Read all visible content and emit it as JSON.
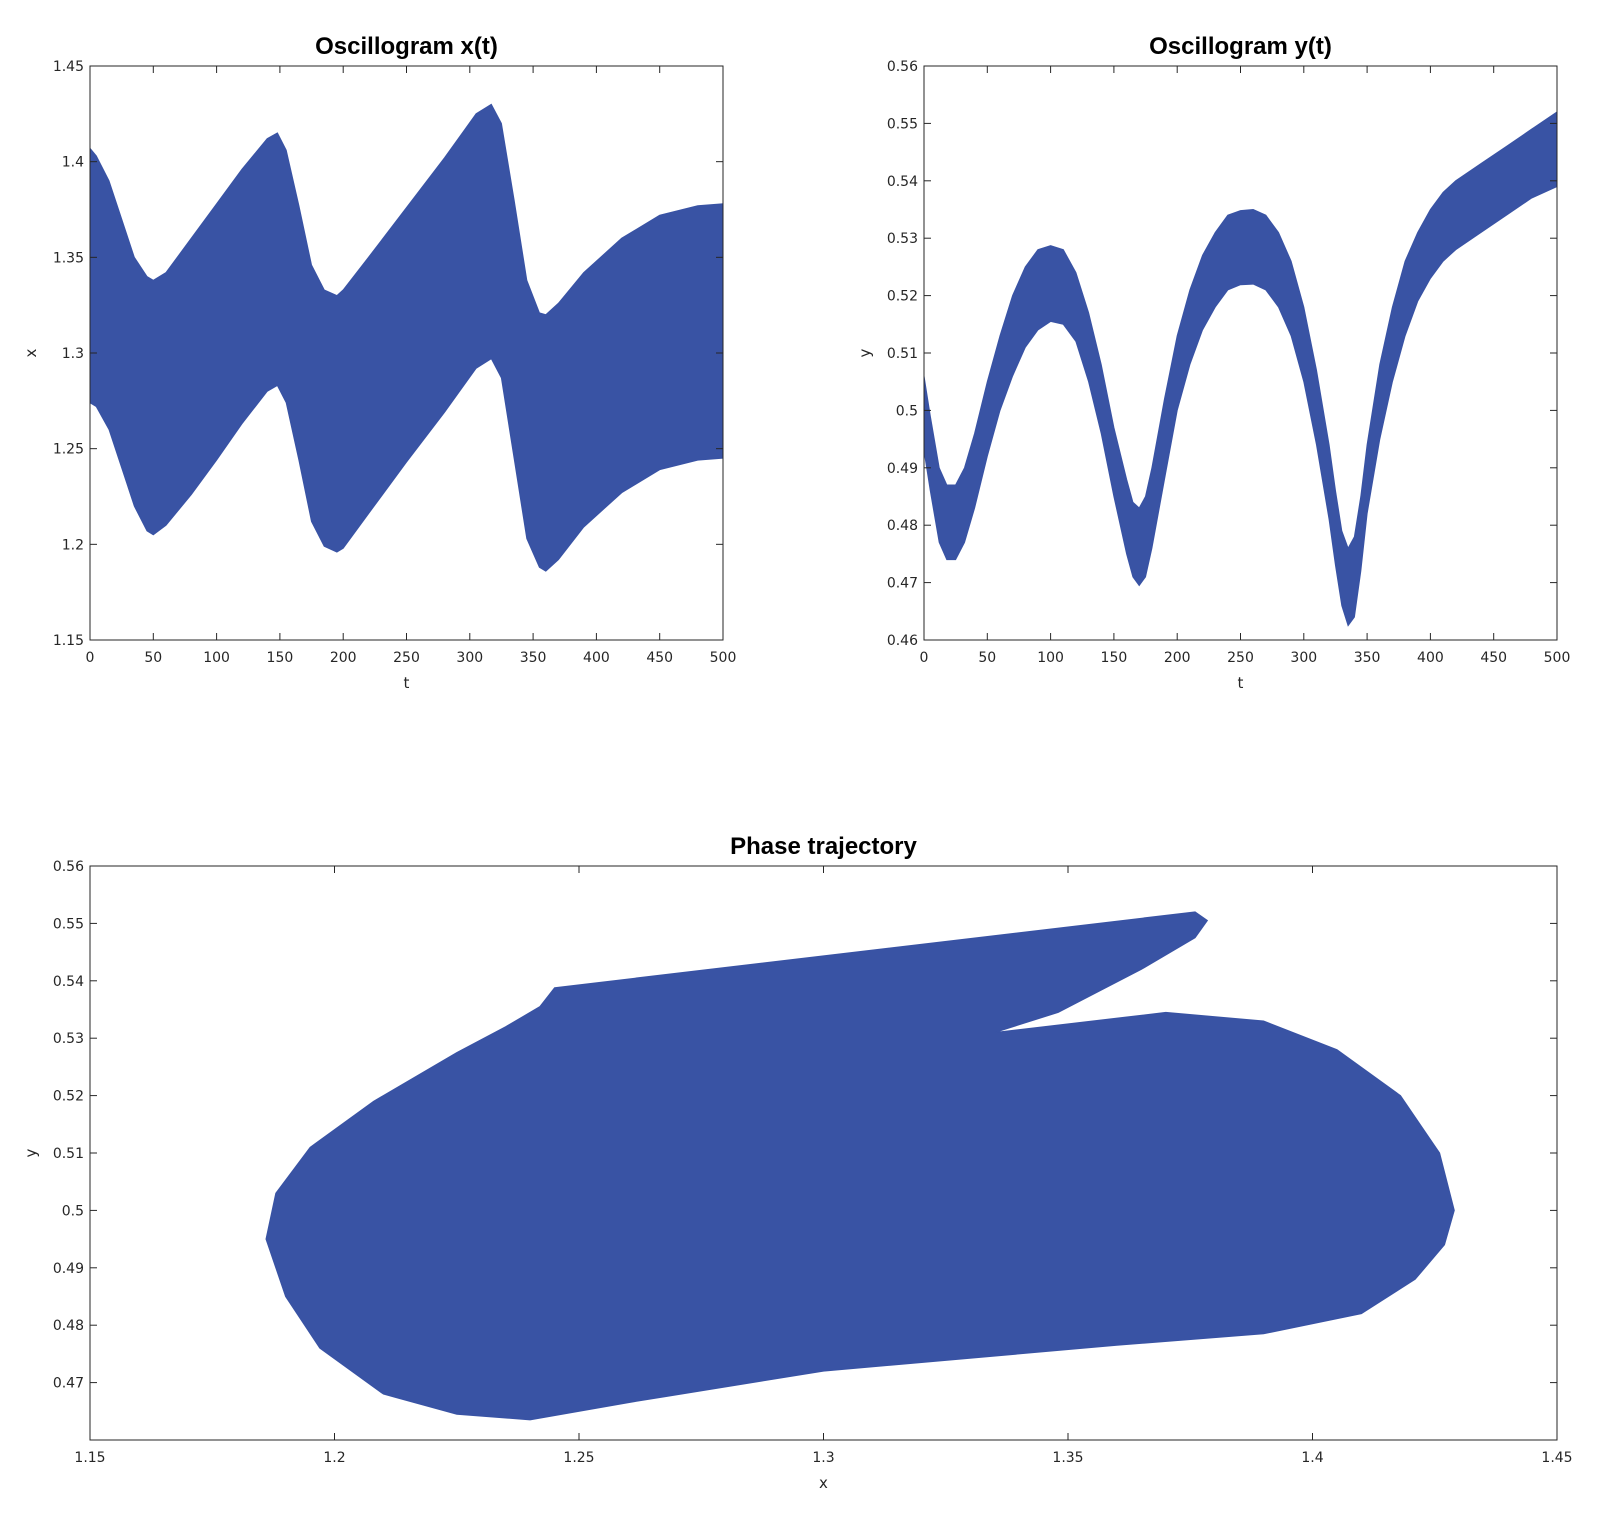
{
  "colors": {
    "band": "#3953a4",
    "axis": "#262626",
    "background": "#ffffff"
  },
  "chart_data": [
    {
      "id": "xt",
      "type": "area",
      "title": "Oscillogram x(t)",
      "xlabel": "t",
      "ylabel": "x",
      "xlim": [
        0,
        500
      ],
      "ylim": [
        1.15,
        1.45
      ],
      "xticks": [
        0,
        50,
        100,
        150,
        200,
        250,
        300,
        350,
        400,
        450,
        500
      ],
      "yticks": [
        1.15,
        1.2,
        1.25,
        1.3,
        1.35,
        1.4,
        1.45
      ],
      "xtick_labels": [
        "0",
        "50",
        "100",
        "150",
        "200",
        "250",
        "300",
        "350",
        "400",
        "450",
        "500"
      ],
      "ytick_labels": [
        "1.15",
        "1.2",
        "1.25",
        "1.3",
        "1.35",
        "1.4",
        "1.45"
      ],
      "grid": false,
      "x": [
        0,
        5,
        15,
        25,
        35,
        45,
        50,
        60,
        80,
        100,
        120,
        140,
        148,
        155,
        165,
        175,
        185,
        195,
        200,
        220,
        250,
        280,
        305,
        317,
        325,
        335,
        345,
        355,
        360,
        370,
        390,
        420,
        450,
        480,
        500
      ],
      "upper": [
        1.407,
        1.403,
        1.39,
        1.37,
        1.35,
        1.34,
        1.338,
        1.342,
        1.36,
        1.378,
        1.396,
        1.412,
        1.415,
        1.406,
        1.377,
        1.346,
        1.333,
        1.33,
        1.333,
        1.35,
        1.376,
        1.402,
        1.425,
        1.43,
        1.42,
        1.38,
        1.338,
        1.321,
        1.32,
        1.326,
        1.342,
        1.36,
        1.372,
        1.377,
        1.378
      ],
      "lower": [
        1.274,
        1.272,
        1.26,
        1.24,
        1.22,
        1.207,
        1.205,
        1.21,
        1.226,
        1.244,
        1.263,
        1.28,
        1.283,
        1.274,
        1.244,
        1.212,
        1.199,
        1.196,
        1.198,
        1.216,
        1.243,
        1.269,
        1.292,
        1.297,
        1.287,
        1.245,
        1.203,
        1.188,
        1.186,
        1.192,
        1.209,
        1.227,
        1.239,
        1.244,
        1.245
      ]
    },
    {
      "id": "yt",
      "type": "area",
      "title": "Oscillogram y(t)",
      "xlabel": "t",
      "ylabel": "y",
      "xlim": [
        0,
        500
      ],
      "ylim": [
        0.46,
        0.56
      ],
      "xticks": [
        0,
        50,
        100,
        150,
        200,
        250,
        300,
        350,
        400,
        450,
        500
      ],
      "yticks": [
        0.46,
        0.47,
        0.48,
        0.49,
        0.5,
        0.51,
        0.52,
        0.53,
        0.54,
        0.55,
        0.56
      ],
      "xtick_labels": [
        "0",
        "50",
        "100",
        "150",
        "200",
        "250",
        "300",
        "350",
        "400",
        "450",
        "500"
      ],
      "ytick_labels": [
        "0.46",
        "0.47",
        "0.48",
        "0.49",
        "0.5",
        "0.51",
        "0.52",
        "0.53",
        "0.54",
        "0.55",
        "0.56"
      ],
      "grid": false,
      "x": [
        0,
        5,
        12,
        18,
        25,
        32,
        40,
        50,
        60,
        70,
        80,
        90,
        100,
        110,
        120,
        130,
        140,
        150,
        160,
        165,
        170,
        175,
        180,
        190,
        200,
        210,
        220,
        230,
        240,
        250,
        260,
        270,
        280,
        290,
        300,
        310,
        320,
        325,
        330,
        335,
        340,
        345,
        350,
        360,
        370,
        380,
        390,
        400,
        410,
        420,
        440,
        460,
        480,
        500
      ],
      "upper": [
        0.506,
        0.499,
        0.49,
        0.487,
        0.487,
        0.49,
        0.496,
        0.505,
        0.513,
        0.52,
        0.525,
        0.528,
        0.5287,
        0.528,
        0.524,
        0.517,
        0.508,
        0.497,
        0.488,
        0.484,
        0.483,
        0.485,
        0.49,
        0.502,
        0.513,
        0.521,
        0.527,
        0.531,
        0.534,
        0.5348,
        0.535,
        0.534,
        0.531,
        0.526,
        0.518,
        0.507,
        0.494,
        0.486,
        0.479,
        0.476,
        0.478,
        0.485,
        0.494,
        0.508,
        0.518,
        0.526,
        0.531,
        0.535,
        0.538,
        0.54,
        0.543,
        0.546,
        0.549,
        0.552
      ],
      "lower": [
        0.493,
        0.486,
        0.477,
        0.474,
        0.474,
        0.477,
        0.483,
        0.492,
        0.5,
        0.506,
        0.511,
        0.514,
        0.5155,
        0.515,
        0.512,
        0.505,
        0.496,
        0.485,
        0.475,
        0.471,
        0.4695,
        0.471,
        0.476,
        0.488,
        0.5,
        0.508,
        0.514,
        0.518,
        0.521,
        0.5219,
        0.522,
        0.521,
        0.518,
        0.513,
        0.505,
        0.494,
        0.481,
        0.473,
        0.466,
        0.4625,
        0.464,
        0.472,
        0.482,
        0.495,
        0.505,
        0.513,
        0.519,
        0.523,
        0.526,
        0.528,
        0.531,
        0.534,
        0.537,
        0.539
      ]
    },
    {
      "id": "phase",
      "type": "area",
      "title": "Phase trajectory",
      "xlabel": "x",
      "ylabel": "y",
      "xlim": [
        1.15,
        1.45
      ],
      "ylim": [
        0.46,
        0.56
      ],
      "xticks": [
        1.15,
        1.2,
        1.25,
        1.3,
        1.35,
        1.4,
        1.45
      ],
      "yticks": [
        0.47,
        0.48,
        0.49,
        0.5,
        0.51,
        0.52,
        0.53,
        0.54,
        0.55,
        0.56
      ],
      "xtick_labels": [
        "1.15",
        "1.2",
        "1.25",
        "1.3",
        "1.35",
        "1.4",
        "1.45"
      ],
      "ytick_labels": [
        "0.47",
        "0.48",
        "0.49",
        "0.5",
        "0.51",
        "0.52",
        "0.53",
        "0.54",
        "0.55",
        "0.56"
      ],
      "grid": false,
      "outline": [
        [
          1.245,
          0.5388
        ],
        [
          1.376,
          0.552
        ],
        [
          1.3785,
          0.5505
        ],
        [
          1.376,
          0.5475
        ],
        [
          1.365,
          0.542
        ],
        [
          1.348,
          0.5345
        ],
        [
          1.335,
          0.531
        ],
        [
          1.37,
          0.5345
        ],
        [
          1.39,
          0.533
        ],
        [
          1.405,
          0.528
        ],
        [
          1.418,
          0.52
        ],
        [
          1.426,
          0.51
        ],
        [
          1.429,
          0.5
        ],
        [
          1.427,
          0.494
        ],
        [
          1.421,
          0.488
        ],
        [
          1.41,
          0.482
        ],
        [
          1.39,
          0.4785
        ],
        [
          1.36,
          0.4765
        ],
        [
          1.3,
          0.472
        ],
        [
          1.26,
          0.4665
        ],
        [
          1.24,
          0.4635
        ],
        [
          1.225,
          0.4645
        ],
        [
          1.21,
          0.468
        ],
        [
          1.197,
          0.476
        ],
        [
          1.19,
          0.485
        ],
        [
          1.186,
          0.495
        ],
        [
          1.188,
          0.503
        ],
        [
          1.195,
          0.511
        ],
        [
          1.208,
          0.519
        ],
        [
          1.225,
          0.5275
        ],
        [
          1.235,
          0.532
        ],
        [
          1.242,
          0.5355
        ],
        [
          1.245,
          0.5388
        ]
      ]
    }
  ]
}
